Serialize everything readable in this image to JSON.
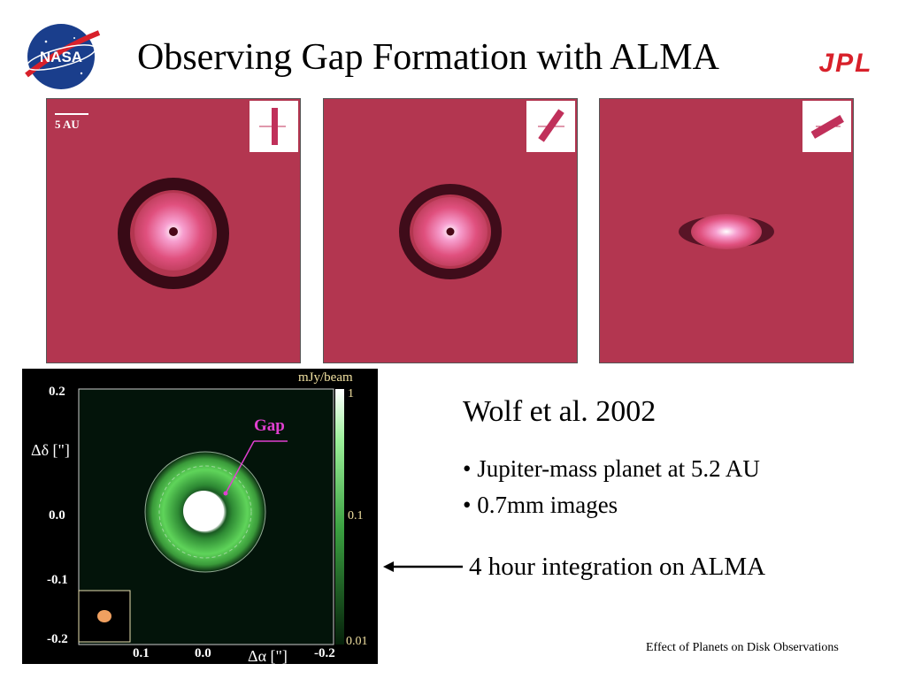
{
  "header": {
    "title": "Observing Gap Formation with ALMA",
    "nasa_logo_text": "NASA",
    "jpl_logo_text": "JPL"
  },
  "simulation_panels": {
    "scale_label": "5 AU"
  },
  "alma_image": {
    "colorbar_title": "mJy/beam",
    "colorbar_ticks": [
      "1",
      "0.1",
      "0.01"
    ],
    "y_axis_label": "Δδ [\"]",
    "x_axis_label": "Δα [\"]",
    "y_ticks": [
      "0.2",
      "0.0",
      "-0.1",
      "-0.2"
    ],
    "x_ticks": [
      "0.1",
      "0.0",
      "-0.2"
    ],
    "annotation": "Gap",
    "colors": {
      "emission": "#5fd45a",
      "annotation": "#e040d0",
      "beam": "#f0a060"
    }
  },
  "content": {
    "citation": "Wolf et al. 2002",
    "bullets": [
      "• Jupiter-mass planet at 5.2 AU",
      "• 0.7mm images"
    ],
    "integration_note": "4 hour integration on ALMA"
  },
  "footer": {
    "caption": "Effect of Planets on Disk Observations"
  },
  "colors": {
    "panel_background": "#b53850",
    "inset_mark": "#c0305a"
  }
}
